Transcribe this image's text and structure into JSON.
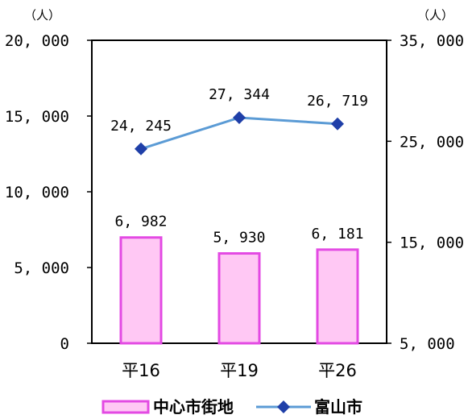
{
  "chart_data": {
    "type": "bar+line",
    "categories": [
      "平16",
      "平19",
      "平26"
    ],
    "left_axis": {
      "unit": "（人）",
      "ylim": [
        0,
        20000
      ],
      "ticks": [
        "0",
        "5, 000",
        "10, 000",
        "15, 000",
        "20, 000"
      ],
      "tick_values": [
        0,
        5000,
        10000,
        15000,
        20000
      ]
    },
    "right_axis": {
      "unit": "（人）",
      "ylim": [
        5000,
        35000
      ],
      "ticks": [
        "5, 000",
        "15, 000",
        "25, 000",
        "35, 000"
      ],
      "tick_values": [
        5000,
        15000,
        25000,
        35000
      ]
    },
    "series": [
      {
        "name": "中心市街地",
        "type": "bar",
        "axis": "left",
        "values": [
          6982,
          5930,
          6181
        ],
        "labels": [
          "6, 982",
          "5, 930",
          "6, 181"
        ],
        "fill": "#ffc8f4",
        "stroke": "#e34ae3"
      },
      {
        "name": "富山市",
        "type": "line",
        "axis": "right",
        "values": [
          24245,
          27344,
          26719
        ],
        "labels": [
          "24, 245",
          "27, 344",
          "26, 719"
        ],
        "line_color": "#5b9bd5",
        "marker_color": "#1f3fa8"
      }
    ],
    "legend_position": "bottom"
  }
}
